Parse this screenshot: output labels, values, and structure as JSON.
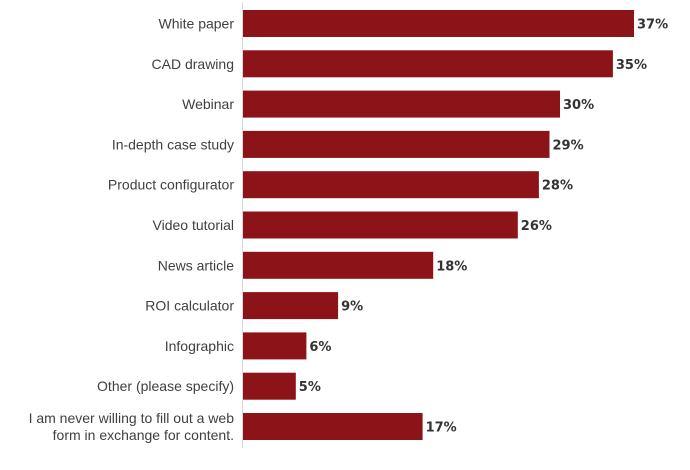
{
  "chart_data": {
    "type": "bar",
    "orientation": "horizontal",
    "title": "",
    "xlabel": "",
    "ylabel": "",
    "grid": false,
    "legend": "none",
    "bar_color": "#8c1419",
    "value_suffix": "%",
    "xlim": [
      0,
      37
    ],
    "categories": [
      [
        "White paper"
      ],
      [
        "CAD drawing"
      ],
      [
        "Webinar"
      ],
      [
        "In-depth case study"
      ],
      [
        "Product configurator"
      ],
      [
        "Video tutorial"
      ],
      [
        "News article"
      ],
      [
        "ROI calculator"
      ],
      [
        "Infographic"
      ],
      [
        "Other (please specify)"
      ],
      [
        "I am never willing to fill out a web",
        "form in exchange for content."
      ]
    ],
    "values": [
      37,
      35,
      30,
      29,
      28,
      26,
      18,
      9,
      6,
      5,
      17
    ]
  }
}
